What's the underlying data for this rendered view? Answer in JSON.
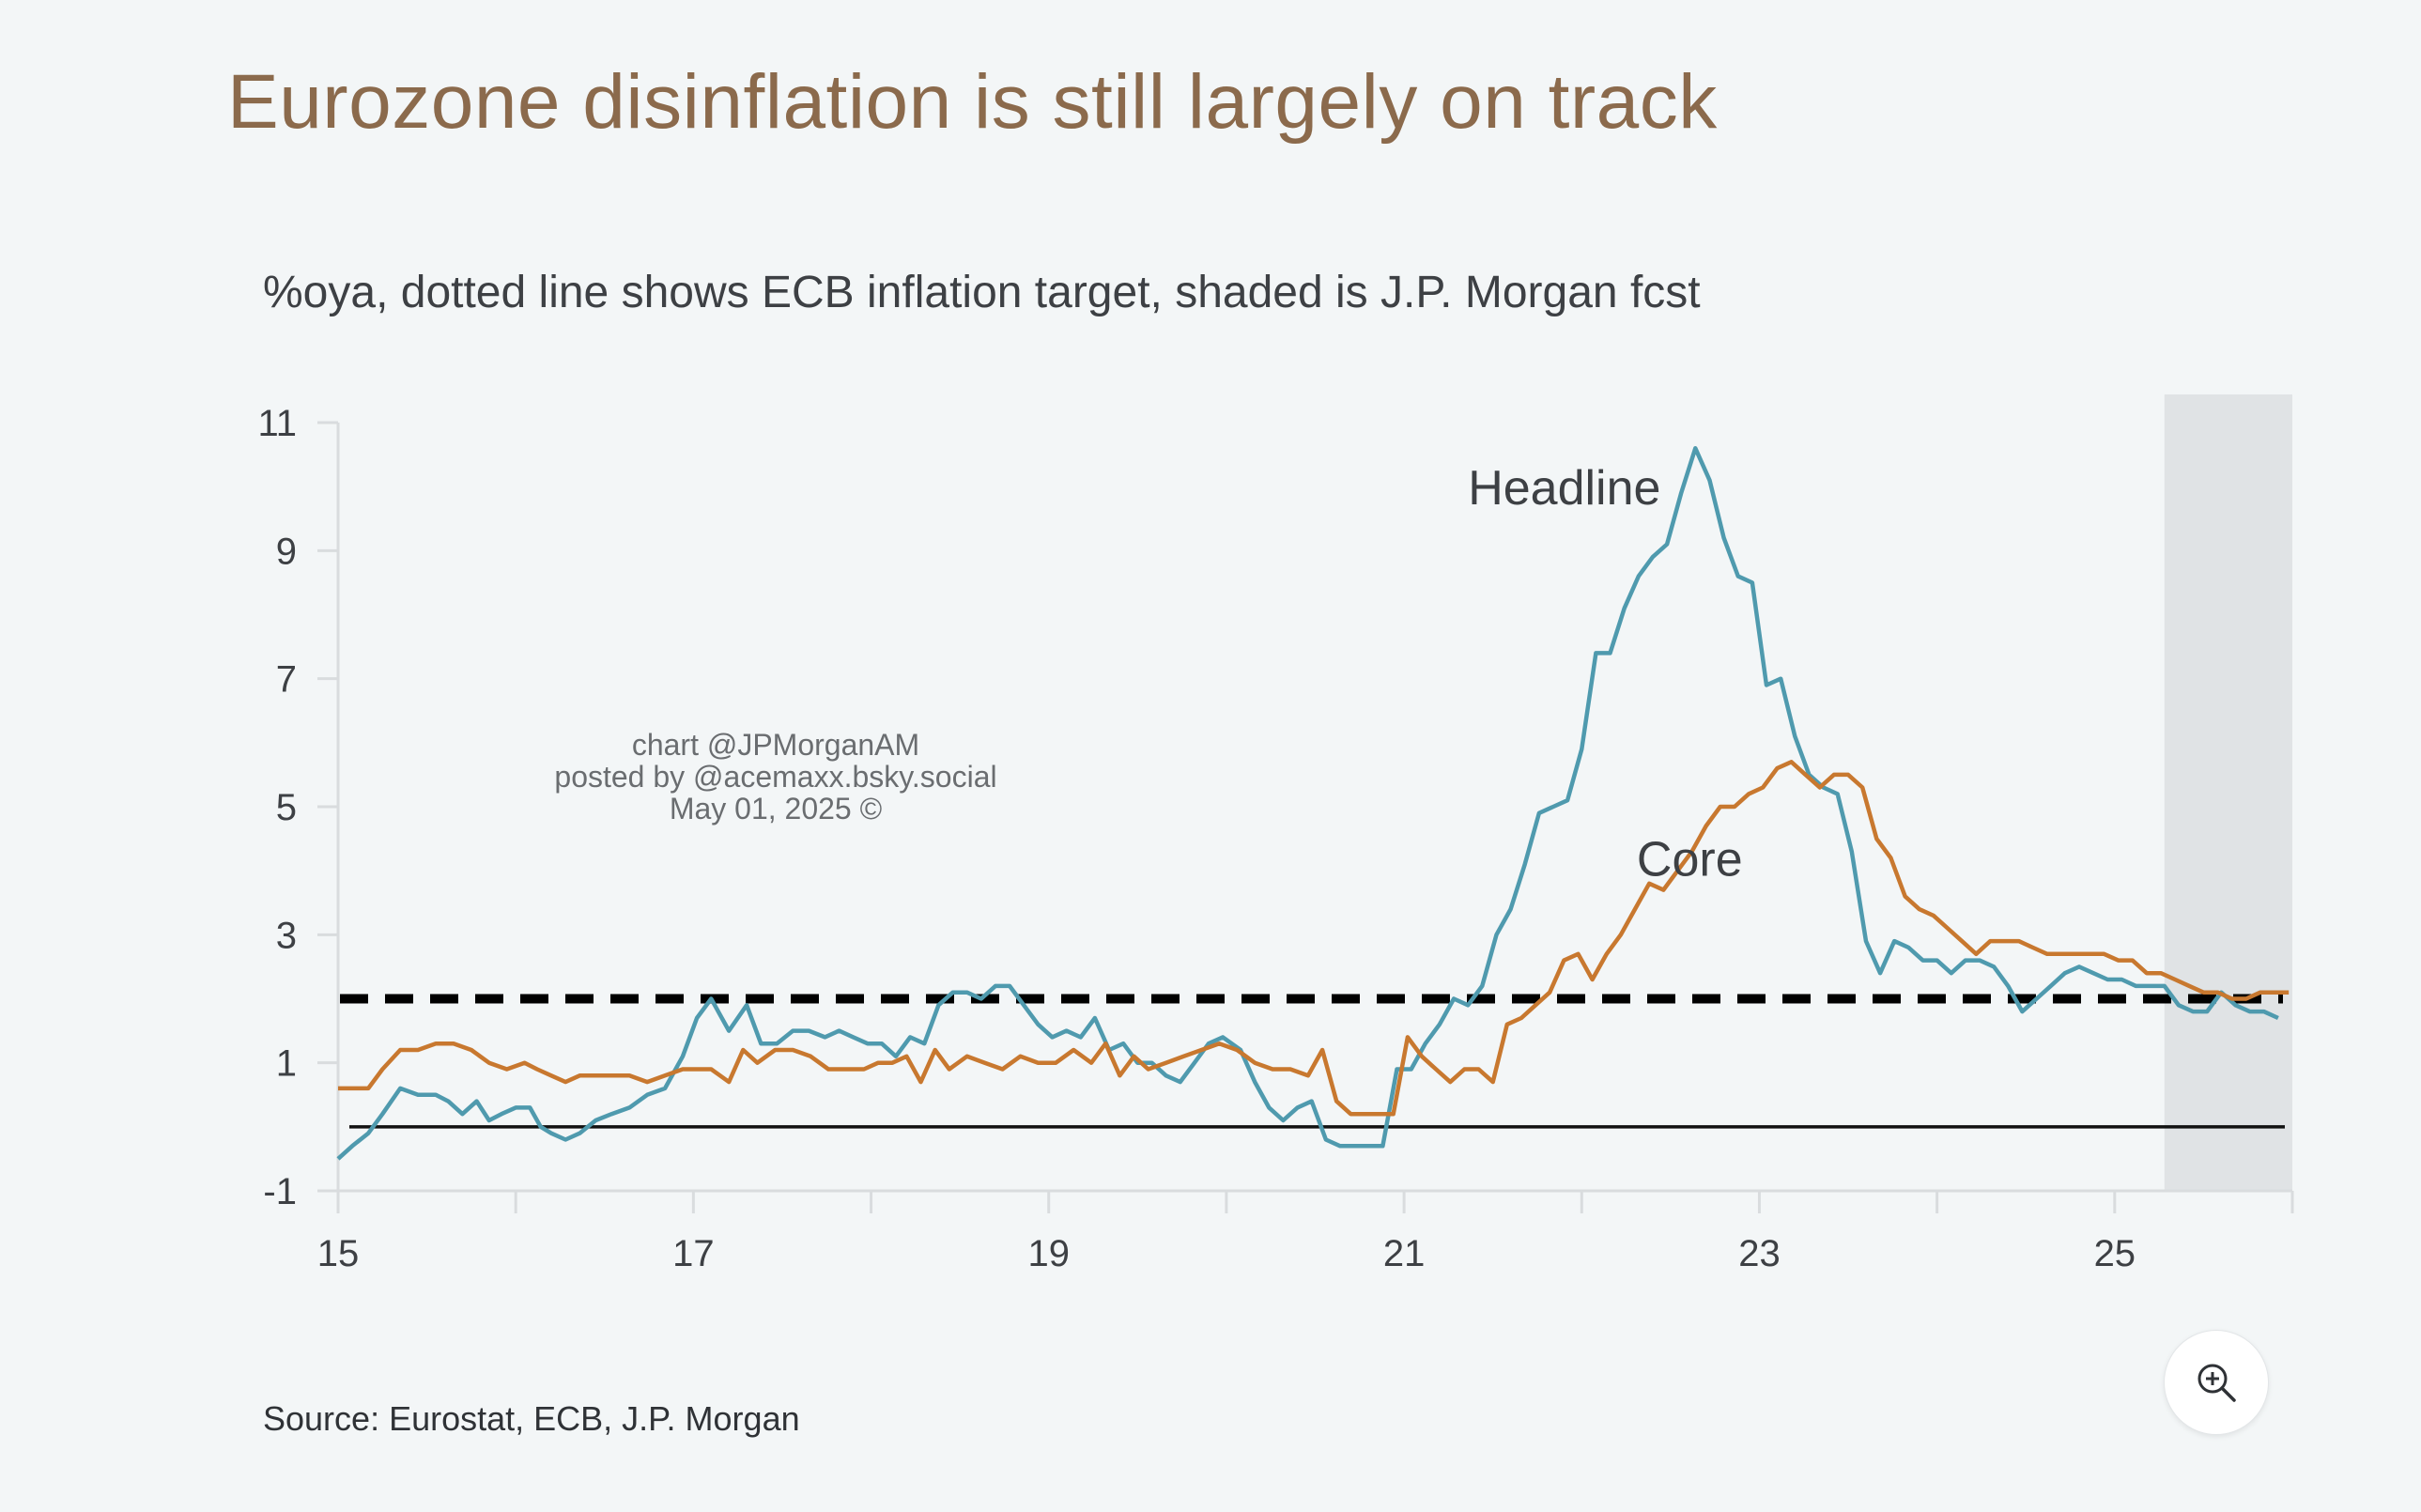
{
  "header": {
    "title": "Eurozone disinflation is still largely on track",
    "subtitle": "%oya, dotted line shows ECB inflation target, shaded is J.P. Morgan fcst"
  },
  "footer": {
    "source": "Source: Eurostat, ECB, J.P. Morgan"
  },
  "watermark": [
    "chart @JPMorganAM",
    "posted by @acemaxx.bsky.social",
    "May 01, 2025 ©"
  ],
  "zoom_button": {
    "icon": "zoom-in-icon"
  },
  "colors": {
    "background": "#f3f6f7",
    "title": "#8b6a4c",
    "headline": "#4f9aae",
    "core": "#c8782f",
    "forecast_shade": "#e0e3e5",
    "axis": "#d9dcde"
  },
  "chart_data": {
    "type": "line",
    "title": "Eurozone disinflation is still largely on track",
    "subtitle": "%oya, dotted line shows ECB inflation target, shaded is J.P. Morgan fcst",
    "xlim": [
      2015,
      2026
    ],
    "ylim": [
      -1,
      11
    ],
    "x_ticks": [
      15,
      17,
      19,
      21,
      23,
      25
    ],
    "y_ticks": [
      -1,
      1,
      3,
      5,
      7,
      9,
      11
    ],
    "grid": false,
    "reference_lines": [
      {
        "label": "ECB inflation target",
        "y": 2,
        "style": "dotted"
      },
      {
        "y": 0,
        "style": "solid"
      }
    ],
    "forecast_region": {
      "x_start": 2025.28,
      "x_end": 2026
    },
    "series": [
      {
        "name": "Headline",
        "color": "#4f9aae",
        "points": [
          [
            2015.0,
            -0.5
          ],
          [
            2015.08,
            -0.3
          ],
          [
            2015.17,
            -0.1
          ],
          [
            2015.25,
            0.2
          ],
          [
            2015.35,
            0.6
          ],
          [
            2015.45,
            0.5
          ],
          [
            2015.55,
            0.5
          ],
          [
            2015.62,
            0.4
          ],
          [
            2015.7,
            0.2
          ],
          [
            2015.78,
            0.4
          ],
          [
            2015.85,
            0.1
          ],
          [
            2015.92,
            0.2
          ],
          [
            2016.0,
            0.3
          ],
          [
            2016.08,
            0.3
          ],
          [
            2016.14,
            0.0
          ],
          [
            2016.2,
            -0.1
          ],
          [
            2016.28,
            -0.2
          ],
          [
            2016.36,
            -0.1
          ],
          [
            2016.45,
            0.1
          ],
          [
            2016.54,
            0.2
          ],
          [
            2016.64,
            0.3
          ],
          [
            2016.74,
            0.5
          ],
          [
            2016.84,
            0.6
          ],
          [
            2016.94,
            1.1
          ],
          [
            2017.02,
            1.7
          ],
          [
            2017.1,
            2.0
          ],
          [
            2017.2,
            1.5
          ],
          [
            2017.3,
            1.9
          ],
          [
            2017.38,
            1.3
          ],
          [
            2017.47,
            1.3
          ],
          [
            2017.56,
            1.5
          ],
          [
            2017.65,
            1.5
          ],
          [
            2017.74,
            1.4
          ],
          [
            2017.82,
            1.5
          ],
          [
            2017.9,
            1.4
          ],
          [
            2017.98,
            1.3
          ],
          [
            2018.06,
            1.3
          ],
          [
            2018.14,
            1.1
          ],
          [
            2018.22,
            1.4
          ],
          [
            2018.3,
            1.3
          ],
          [
            2018.38,
            1.9
          ],
          [
            2018.46,
            2.1
          ],
          [
            2018.54,
            2.1
          ],
          [
            2018.62,
            2.0
          ],
          [
            2018.7,
            2.2
          ],
          [
            2018.78,
            2.2
          ],
          [
            2018.86,
            1.9
          ],
          [
            2018.94,
            1.6
          ],
          [
            2019.02,
            1.4
          ],
          [
            2019.1,
            1.5
          ],
          [
            2019.18,
            1.4
          ],
          [
            2019.26,
            1.7
          ],
          [
            2019.34,
            1.2
          ],
          [
            2019.42,
            1.3
          ],
          [
            2019.5,
            1.0
          ],
          [
            2019.58,
            1.0
          ],
          [
            2019.66,
            0.8
          ],
          [
            2019.74,
            0.7
          ],
          [
            2019.82,
            1.0
          ],
          [
            2019.9,
            1.3
          ],
          [
            2019.98,
            1.4
          ],
          [
            2020.08,
            1.2
          ],
          [
            2020.16,
            0.7
          ],
          [
            2020.24,
            0.3
          ],
          [
            2020.32,
            0.1
          ],
          [
            2020.4,
            0.3
          ],
          [
            2020.48,
            0.4
          ],
          [
            2020.56,
            -0.2
          ],
          [
            2020.64,
            -0.3
          ],
          [
            2020.72,
            -0.3
          ],
          [
            2020.8,
            -0.3
          ],
          [
            2020.88,
            -0.3
          ],
          [
            2020.96,
            0.9
          ],
          [
            2021.04,
            0.9
          ],
          [
            2021.12,
            1.3
          ],
          [
            2021.2,
            1.6
          ],
          [
            2021.28,
            2.0
          ],
          [
            2021.36,
            1.9
          ],
          [
            2021.44,
            2.2
          ],
          [
            2021.52,
            3.0
          ],
          [
            2021.6,
            3.4
          ],
          [
            2021.68,
            4.1
          ],
          [
            2021.76,
            4.9
          ],
          [
            2021.84,
            5.0
          ],
          [
            2021.92,
            5.1
          ],
          [
            2022.0,
            5.9
          ],
          [
            2022.08,
            7.4
          ],
          [
            2022.16,
            7.4
          ],
          [
            2022.24,
            8.1
          ],
          [
            2022.32,
            8.6
          ],
          [
            2022.4,
            8.9
          ],
          [
            2022.48,
            9.1
          ],
          [
            2022.56,
            9.9
          ],
          [
            2022.64,
            10.6
          ],
          [
            2022.72,
            10.1
          ],
          [
            2022.8,
            9.2
          ],
          [
            2022.88,
            8.6
          ],
          [
            2022.96,
            8.5
          ],
          [
            2023.04,
            6.9
          ],
          [
            2023.12,
            7.0
          ],
          [
            2023.2,
            6.1
          ],
          [
            2023.28,
            5.5
          ],
          [
            2023.36,
            5.3
          ],
          [
            2023.44,
            5.2
          ],
          [
            2023.52,
            4.3
          ],
          [
            2023.6,
            2.9
          ],
          [
            2023.68,
            2.4
          ],
          [
            2023.76,
            2.9
          ],
          [
            2023.84,
            2.8
          ],
          [
            2023.92,
            2.6
          ],
          [
            2024.0,
            2.6
          ],
          [
            2024.08,
            2.4
          ],
          [
            2024.16,
            2.6
          ],
          [
            2024.24,
            2.6
          ],
          [
            2024.32,
            2.5
          ],
          [
            2024.4,
            2.2
          ],
          [
            2024.48,
            1.8
          ],
          [
            2024.56,
            2.0
          ],
          [
            2024.64,
            2.2
          ],
          [
            2024.72,
            2.4
          ],
          [
            2024.8,
            2.5
          ],
          [
            2024.88,
            2.4
          ],
          [
            2024.96,
            2.3
          ],
          [
            2025.04,
            2.3
          ],
          [
            2025.12,
            2.2
          ],
          [
            2025.2,
            2.2
          ],
          [
            2025.28,
            2.2
          ],
          [
            2025.36,
            1.9
          ],
          [
            2025.44,
            1.8
          ],
          [
            2025.52,
            1.8
          ],
          [
            2025.6,
            2.1
          ],
          [
            2025.68,
            1.9
          ],
          [
            2025.76,
            1.8
          ],
          [
            2025.84,
            1.8
          ],
          [
            2025.92,
            1.7
          ]
        ]
      },
      {
        "name": "Core",
        "color": "#c8782f",
        "points": [
          [
            2015.0,
            0.6
          ],
          [
            2015.08,
            0.6
          ],
          [
            2015.17,
            0.6
          ],
          [
            2015.25,
            0.9
          ],
          [
            2015.35,
            1.2
          ],
          [
            2015.45,
            1.2
          ],
          [
            2015.55,
            1.3
          ],
          [
            2015.65,
            1.3
          ],
          [
            2015.75,
            1.2
          ],
          [
            2015.85,
            1.0
          ],
          [
            2015.95,
            0.9
          ],
          [
            2016.05,
            1.0
          ],
          [
            2016.12,
            0.9
          ],
          [
            2016.2,
            0.8
          ],
          [
            2016.28,
            0.7
          ],
          [
            2016.36,
            0.8
          ],
          [
            2016.45,
            0.8
          ],
          [
            2016.54,
            0.8
          ],
          [
            2016.64,
            0.8
          ],
          [
            2016.74,
            0.7
          ],
          [
            2016.84,
            0.8
          ],
          [
            2016.94,
            0.9
          ],
          [
            2017.02,
            0.9
          ],
          [
            2017.1,
            0.9
          ],
          [
            2017.2,
            0.7
          ],
          [
            2017.28,
            1.2
          ],
          [
            2017.36,
            1.0
          ],
          [
            2017.46,
            1.2
          ],
          [
            2017.56,
            1.2
          ],
          [
            2017.66,
            1.1
          ],
          [
            2017.76,
            0.9
          ],
          [
            2017.86,
            0.9
          ],
          [
            2017.96,
            0.9
          ],
          [
            2018.04,
            1.0
          ],
          [
            2018.12,
            1.0
          ],
          [
            2018.2,
            1.1
          ],
          [
            2018.28,
            0.7
          ],
          [
            2018.36,
            1.2
          ],
          [
            2018.44,
            0.9
          ],
          [
            2018.54,
            1.1
          ],
          [
            2018.64,
            1.0
          ],
          [
            2018.74,
            0.9
          ],
          [
            2018.84,
            1.1
          ],
          [
            2018.94,
            1.0
          ],
          [
            2019.04,
            1.0
          ],
          [
            2019.14,
            1.2
          ],
          [
            2019.24,
            1.0
          ],
          [
            2019.32,
            1.3
          ],
          [
            2019.4,
            0.8
          ],
          [
            2019.48,
            1.1
          ],
          [
            2019.56,
            0.9
          ],
          [
            2019.66,
            1.0
          ],
          [
            2019.76,
            1.1
          ],
          [
            2019.86,
            1.2
          ],
          [
            2019.96,
            1.3
          ],
          [
            2020.06,
            1.2
          ],
          [
            2020.16,
            1.0
          ],
          [
            2020.26,
            0.9
          ],
          [
            2020.36,
            0.9
          ],
          [
            2020.46,
            0.8
          ],
          [
            2020.54,
            1.2
          ],
          [
            2020.62,
            0.4
          ],
          [
            2020.7,
            0.2
          ],
          [
            2020.78,
            0.2
          ],
          [
            2020.86,
            0.2
          ],
          [
            2020.94,
            0.2
          ],
          [
            2021.02,
            1.4
          ],
          [
            2021.1,
            1.1
          ],
          [
            2021.18,
            0.9
          ],
          [
            2021.26,
            0.7
          ],
          [
            2021.34,
            0.9
          ],
          [
            2021.42,
            0.9
          ],
          [
            2021.5,
            0.7
          ],
          [
            2021.58,
            1.6
          ],
          [
            2021.66,
            1.7
          ],
          [
            2021.74,
            1.9
          ],
          [
            2021.82,
            2.1
          ],
          [
            2021.9,
            2.6
          ],
          [
            2021.98,
            2.7
          ],
          [
            2022.06,
            2.3
          ],
          [
            2022.14,
            2.7
          ],
          [
            2022.22,
            3.0
          ],
          [
            2022.3,
            3.4
          ],
          [
            2022.38,
            3.8
          ],
          [
            2022.46,
            3.7
          ],
          [
            2022.54,
            4.0
          ],
          [
            2022.62,
            4.3
          ],
          [
            2022.7,
            4.7
          ],
          [
            2022.78,
            5.0
          ],
          [
            2022.86,
            5.0
          ],
          [
            2022.94,
            5.2
          ],
          [
            2023.02,
            5.3
          ],
          [
            2023.1,
            5.6
          ],
          [
            2023.18,
            5.7
          ],
          [
            2023.26,
            5.5
          ],
          [
            2023.34,
            5.3
          ],
          [
            2023.42,
            5.5
          ],
          [
            2023.5,
            5.5
          ],
          [
            2023.58,
            5.3
          ],
          [
            2023.66,
            4.5
          ],
          [
            2023.74,
            4.2
          ],
          [
            2023.82,
            3.6
          ],
          [
            2023.9,
            3.4
          ],
          [
            2023.98,
            3.3
          ],
          [
            2024.06,
            3.1
          ],
          [
            2024.14,
            2.9
          ],
          [
            2024.22,
            2.7
          ],
          [
            2024.3,
            2.9
          ],
          [
            2024.38,
            2.9
          ],
          [
            2024.46,
            2.9
          ],
          [
            2024.54,
            2.8
          ],
          [
            2024.62,
            2.7
          ],
          [
            2024.7,
            2.7
          ],
          [
            2024.78,
            2.7
          ],
          [
            2024.86,
            2.7
          ],
          [
            2024.94,
            2.7
          ],
          [
            2025.02,
            2.6
          ],
          [
            2025.1,
            2.6
          ],
          [
            2025.18,
            2.4
          ],
          [
            2025.26,
            2.4
          ],
          [
            2025.34,
            2.3
          ],
          [
            2025.42,
            2.2
          ],
          [
            2025.5,
            2.1
          ],
          [
            2025.58,
            2.1
          ],
          [
            2025.66,
            2.0
          ],
          [
            2025.74,
            2.0
          ],
          [
            2025.82,
            2.1
          ],
          [
            2025.9,
            2.1
          ],
          [
            2025.98,
            2.1
          ]
        ]
      }
    ],
    "annotations": [
      {
        "text": "Headline",
        "x": 2022.1,
        "y": 9.9
      },
      {
        "text": "Core",
        "x": 2023.05,
        "y": 4.1
      }
    ]
  }
}
